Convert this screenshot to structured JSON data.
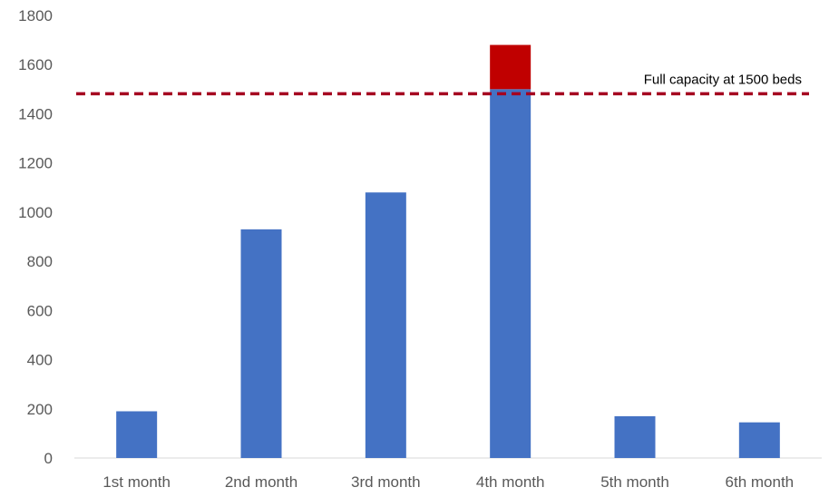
{
  "chart_data": {
    "type": "bar",
    "categories": [
      "1st month",
      "2nd month",
      "3rd month",
      "4th month",
      "5th month",
      "6th  month"
    ],
    "values": [
      190,
      930,
      1080,
      1680,
      170,
      145
    ],
    "ylim": [
      0,
      1800
    ],
    "yticks": [
      0,
      200,
      400,
      600,
      800,
      1000,
      1200,
      1400,
      1600,
      1800
    ],
    "grid": false,
    "colors": {
      "bar": "#4472C4",
      "over_capacity": "#C00000",
      "threshold_line": "#A50021"
    },
    "threshold": {
      "value": 1500,
      "label": "Full capacity at 1500 beds"
    }
  }
}
